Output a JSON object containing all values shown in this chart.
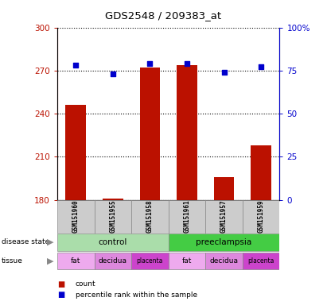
{
  "title": "GDS2548 / 209383_at",
  "samples": [
    "GSM151960",
    "GSM151955",
    "GSM151958",
    "GSM151961",
    "GSM151957",
    "GSM151959"
  ],
  "counts": [
    246,
    181,
    272,
    274,
    196,
    218
  ],
  "percentile_ranks": [
    78,
    73,
    79,
    79,
    74,
    77
  ],
  "ylim_left": [
    180,
    300
  ],
  "ylim_right": [
    0,
    100
  ],
  "yticks_left": [
    180,
    210,
    240,
    270,
    300
  ],
  "yticks_right": [
    0,
    25,
    50,
    75,
    100
  ],
  "ytick_labels_left": [
    "180",
    "210",
    "240",
    "270",
    "300"
  ],
  "ytick_labels_right": [
    "0",
    "25",
    "50",
    "75",
    "100%"
  ],
  "bar_color": "#bb1100",
  "dot_color": "#0000cc",
  "tissue_colors": {
    "fat": "#ee99ee",
    "decidua": "#dd77dd",
    "placenta": "#cc44cc"
  },
  "control_color": "#aaddaa",
  "preeclampsia_color": "#44cc44",
  "sample_bg_color": "#cccccc",
  "legend_count_color": "#bb1100",
  "legend_pct_color": "#0000cc",
  "tissue": [
    "fat",
    "decidua",
    "placenta",
    "fat",
    "decidua",
    "placenta"
  ]
}
